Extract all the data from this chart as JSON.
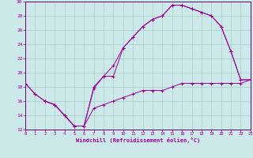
{
  "xlabel": "Windchill (Refroidissement éolien,°C)",
  "bg_color": "#cce8e8",
  "grid_color": "#aacccc",
  "line_color": "#990099",
  "spine_color": "#660066",
  "xlim": [
    0,
    23
  ],
  "ylim": [
    12,
    30
  ],
  "xticks": [
    0,
    1,
    2,
    3,
    4,
    5,
    6,
    7,
    8,
    9,
    10,
    11,
    12,
    13,
    14,
    15,
    16,
    17,
    18,
    19,
    20,
    21,
    22,
    23
  ],
  "yticks": [
    12,
    14,
    16,
    18,
    20,
    22,
    24,
    26,
    28,
    30
  ],
  "line1_x": [
    0,
    1,
    2,
    3,
    4,
    5,
    6,
    7,
    8,
    9,
    10,
    11,
    12,
    13,
    14,
    15,
    16,
    17,
    18,
    19,
    20,
    21,
    22,
    23
  ],
  "line1_y": [
    18.5,
    17.0,
    16.0,
    15.5,
    14.0,
    12.5,
    12.5,
    17.8,
    19.5,
    19.5,
    23.5,
    25.0,
    26.5,
    27.5,
    28.0,
    29.5,
    29.5,
    29.0,
    28.5,
    28.0,
    26.5,
    23.0,
    19.0,
    19.0
  ],
  "line2_x": [
    0,
    1,
    2,
    3,
    4,
    5,
    6,
    7,
    8,
    9,
    10,
    11,
    12,
    13,
    14,
    15,
    16,
    17,
    18,
    19,
    20,
    21,
    22,
    23
  ],
  "line2_y": [
    18.5,
    17.0,
    16.0,
    15.5,
    14.0,
    12.5,
    12.5,
    15.0,
    15.5,
    16.0,
    16.5,
    17.0,
    17.5,
    17.5,
    17.5,
    18.0,
    18.5,
    18.5,
    18.5,
    18.5,
    18.5,
    18.5,
    18.5,
    19.0
  ],
  "line3_x": [
    2,
    3,
    4,
    5,
    6,
    7,
    8,
    9,
    10,
    11,
    12,
    13,
    14,
    15,
    16,
    17,
    18,
    19,
    20,
    21,
    22,
    23
  ],
  "line3_y": [
    16.0,
    15.5,
    14.0,
    12.5,
    12.5,
    18.0,
    19.5,
    21.0,
    23.5,
    25.0,
    26.5,
    27.5,
    28.0,
    29.5,
    29.5,
    29.0,
    28.5,
    28.0,
    26.5,
    23.0,
    19.0,
    19.0
  ]
}
